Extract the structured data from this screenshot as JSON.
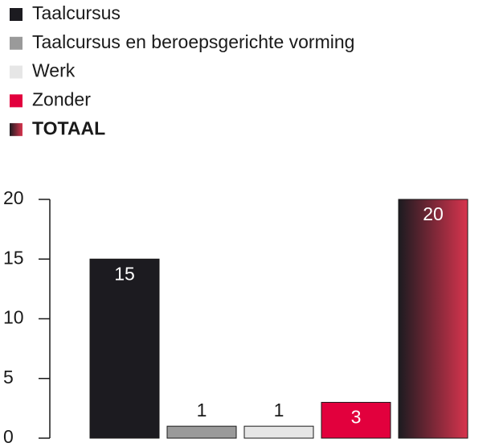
{
  "chart_data": {
    "type": "bar",
    "categories": [
      "Taalcursus",
      "Taalcursus en beroepsgerichte vorming",
      "Werk",
      "Zonder",
      "TOTAAL"
    ],
    "values": [
      15,
      1,
      1,
      3,
      20
    ],
    "colors": [
      "#1c1b20",
      "#9a9a9a",
      "#e6e6e6",
      "#e2003d",
      [
        "#1c1b20",
        "#d8344e"
      ]
    ],
    "ylim": [
      0,
      20
    ],
    "yticks": [
      0,
      5,
      10,
      15,
      20
    ]
  }
}
